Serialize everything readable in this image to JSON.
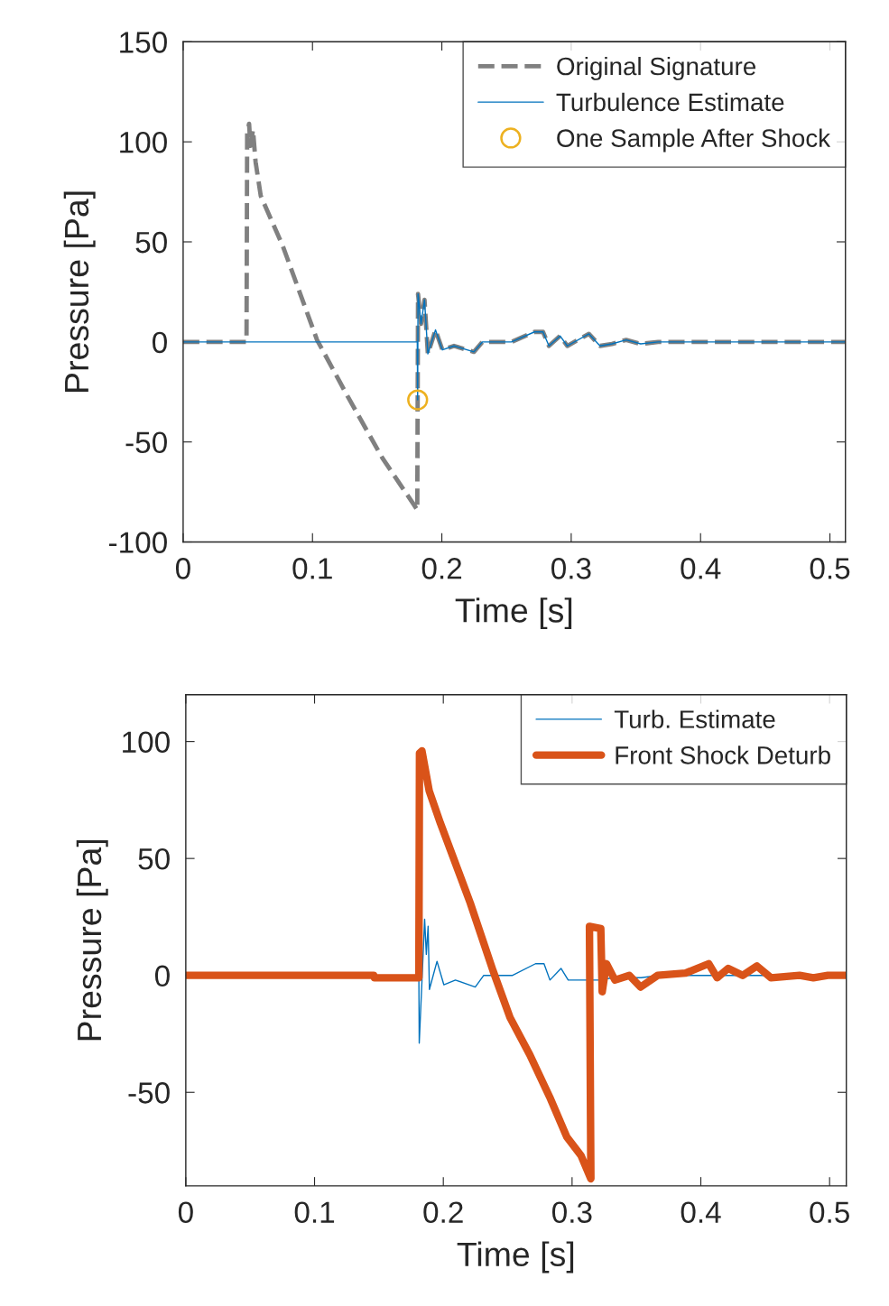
{
  "chart_data": [
    {
      "type": "line",
      "xlabel": "Time [s]",
      "ylabel": "Pressure [Pa]",
      "xlim": [
        0,
        0.512
      ],
      "ylim": [
        -100,
        150
      ],
      "xticks": [
        0,
        0.1,
        0.2,
        0.3,
        0.4,
        0.5
      ],
      "yticks": [
        -100,
        -50,
        0,
        50,
        100,
        150
      ],
      "grid": false,
      "legend": "top right",
      "series": [
        {
          "name": "Original Signature",
          "color": "#808080",
          "line_style": "dashed",
          "marker": "none",
          "x": [
            0,
            0.049,
            0.0495,
            0.051,
            0.052,
            0.054,
            0.056,
            0.06,
            0.077,
            0.1035,
            0.127,
            0.154,
            0.178,
            0.181,
            0.1816,
            0.1839,
            0.1866,
            0.1892,
            0.1951,
            0.2004,
            0.2094,
            0.2248,
            0.2314,
            0.2538,
            0.2716,
            0.2782,
            0.2828,
            0.2914,
            0.297,
            0.3137,
            0.3223,
            0.3315,
            0.3425,
            0.3537,
            0.3672,
            0.512
          ],
          "values": [
            0,
            0,
            105,
            109,
            98,
            106,
            90,
            73,
            48,
            1,
            -27,
            -58,
            -81,
            -84,
            24,
            9,
            21,
            -6,
            6,
            -4,
            -2,
            -5,
            0,
            0,
            5,
            5,
            -2,
            3,
            -2,
            4,
            -2,
            -1,
            1,
            -1,
            0,
            0
          ]
        },
        {
          "name": "Turbulence Estimate",
          "color": "#0072bd",
          "line_style": "solid",
          "marker": "none",
          "x": [
            0,
            0.181,
            0.1813,
            0.1816,
            0.1839,
            0.1866,
            0.1892,
            0.1951,
            0.2004,
            0.2094,
            0.2248,
            0.2314,
            0.2538,
            0.2716,
            0.2782,
            0.2828,
            0.2914,
            0.297,
            0.3137,
            0.3223,
            0.3315,
            0.3425,
            0.3537,
            0.3672,
            0.512
          ],
          "values": [
            0,
            0,
            -29,
            24,
            9,
            21,
            -6,
            6,
            -4,
            -2,
            -5,
            0,
            0,
            5,
            5,
            -2,
            3,
            -2,
            4,
            -2,
            -1,
            1,
            -1,
            0,
            0
          ]
        },
        {
          "name": "One Sample After Shock",
          "type": "scatter",
          "color": "#edb120",
          "marker": "circle",
          "x": [
            0.1813
          ],
          "values": [
            -29
          ]
        }
      ]
    },
    {
      "type": "line",
      "xlabel": "Time [s]",
      "ylabel": "Pressure [Pa]",
      "xlim": [
        0,
        0.513
      ],
      "ylim": [
        -90,
        120
      ],
      "xticks": [
        0,
        0.1,
        0.2,
        0.3,
        0.4,
        0.5
      ],
      "yticks": [
        -50,
        0,
        50,
        100
      ],
      "grid": false,
      "legend": "top right",
      "series": [
        {
          "name": "Turb. Estimate",
          "color": "#0072bd",
          "line_style": "solid",
          "marker": "none",
          "x": [
            0,
            0.181,
            0.1813,
            0.1855,
            0.1868,
            0.1882,
            0.1892,
            0.1951,
            0.2004,
            0.2094,
            0.2248,
            0.2314,
            0.2538,
            0.2716,
            0.2782,
            0.2828,
            0.2914,
            0.297,
            0.3137,
            0.3223,
            0.3315,
            0.3425,
            0.3537,
            0.3672,
            0.513
          ],
          "values": [
            0,
            0,
            -29,
            24,
            9,
            21,
            -6,
            6,
            -4,
            -2,
            -5,
            0,
            0,
            5,
            5,
            -2,
            3,
            -2,
            null,
            -2,
            -1,
            null,
            -1,
            0,
            0
          ]
        },
        {
          "name": "Front Shock Deturb",
          "color": "#d95319",
          "line_style": "solid",
          "marker": "none",
          "x": [
            0,
            0.146,
            0.1465,
            0.181,
            0.1815,
            0.1834,
            0.189,
            0.1978,
            0.2121,
            0.2209,
            0.2386,
            0.2518,
            0.2672,
            0.2826,
            0.2958,
            0.3069,
            0.3146,
            0.3135,
            0.3223,
            0.3234,
            0.3267,
            0.3333,
            0.3444,
            0.3532,
            0.3664,
            0.3882,
            0.4061,
            0.4127,
            0.4213,
            0.4325,
            0.4436,
            0.4544,
            0.4767,
            0.4874,
            0.4987,
            0.513
          ],
          "values": [
            0,
            0,
            -1,
            -1,
            95,
            96,
            79,
            65,
            44,
            31,
            2,
            -18,
            -34,
            -52,
            -69,
            -77,
            -87,
            21,
            20,
            -7,
            5,
            -2,
            0,
            -5,
            0,
            1,
            5,
            -1,
            3,
            0,
            4,
            -1,
            0,
            -1,
            0,
            0
          ]
        }
      ]
    }
  ]
}
